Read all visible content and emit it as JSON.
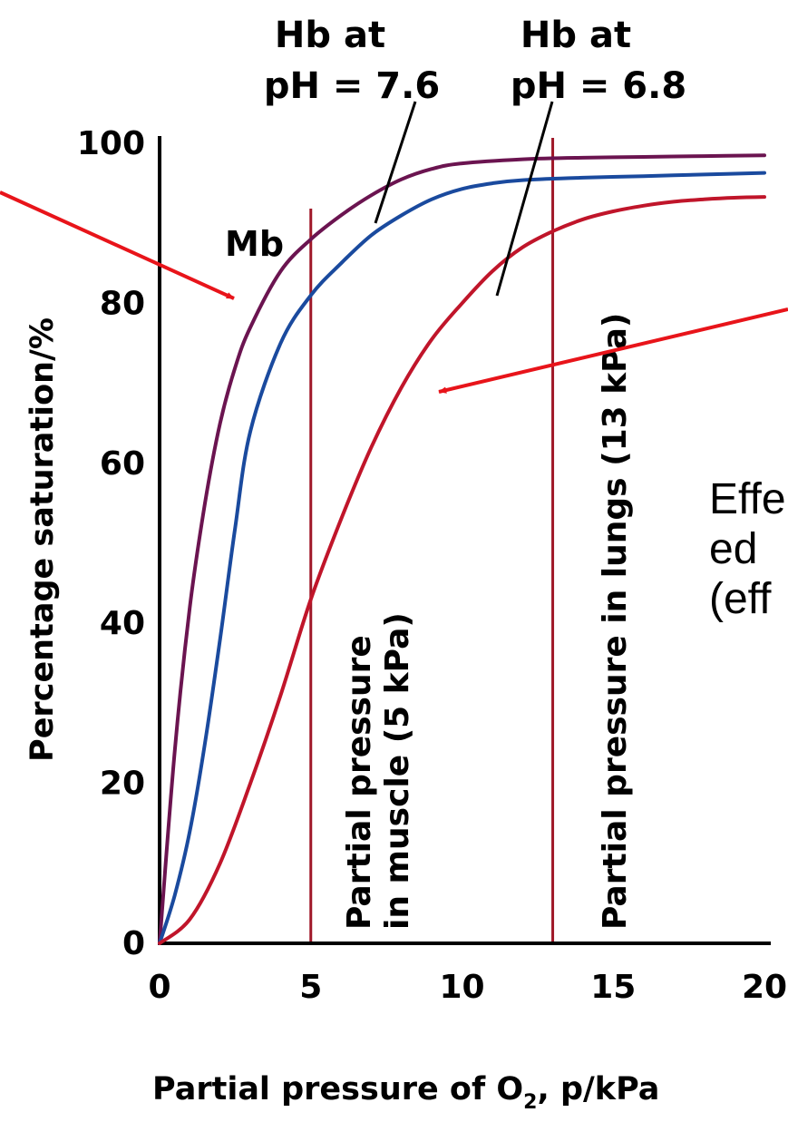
{
  "chart_data": {
    "type": "line",
    "title": "",
    "xlabel": "Partial pressure of O",
    "xlabel_sub": "2",
    "xlabel_tail": ", p/kPa",
    "ylabel": "Percentage saturation/%",
    "xlim": [
      0,
      20
    ],
    "ylim": [
      0,
      100
    ],
    "x_ticks": [
      0,
      5,
      10,
      15,
      20
    ],
    "y_ticks": [
      0,
      20,
      40,
      60,
      80,
      100
    ],
    "grid": false,
    "legend": "none",
    "series": [
      {
        "name": "Mb",
        "color": "#6b1450",
        "x": [
          0,
          0.5,
          1,
          1.5,
          2,
          2.5,
          3,
          4,
          5,
          6,
          7,
          8,
          9,
          10,
          12,
          14,
          16,
          18,
          20
        ],
        "y": [
          0,
          24,
          42,
          55,
          65,
          72,
          77,
          84,
          88,
          91,
          93.5,
          95.5,
          96.8,
          97.5,
          98,
          98.2,
          98.3,
          98.4,
          98.5
        ]
      },
      {
        "name": "Hb at pH = 7.6",
        "color": "#1a4a9e",
        "x": [
          0,
          0.5,
          1,
          1.5,
          2,
          2.5,
          3,
          4,
          5,
          6,
          7,
          8,
          9,
          10,
          11,
          12,
          14,
          16,
          18,
          20
        ],
        "y": [
          0,
          6,
          14,
          25,
          38,
          52,
          64,
          75,
          81,
          85,
          88.5,
          91,
          93,
          94.3,
          95,
          95.4,
          95.7,
          95.9,
          96.1,
          96.3
        ]
      },
      {
        "name": "Hb at pH = 6.8",
        "color": "#c0152a",
        "x": [
          0,
          1,
          2,
          3,
          4,
          5,
          6,
          7,
          8,
          9,
          10,
          11,
          12,
          13,
          14,
          15,
          16,
          17,
          18,
          19,
          20
        ],
        "y": [
          0,
          3,
          10,
          20,
          31,
          43,
          53,
          62,
          69.5,
          75.5,
          80,
          84,
          87,
          89,
          90.5,
          91.5,
          92.2,
          92.7,
          93,
          93.2,
          93.3
        ]
      }
    ],
    "reference_lines": [
      {
        "x": 5,
        "label_1": "Partial pressure",
        "label_2": "in muscle (5 kPa)"
      },
      {
        "x": 13,
        "label_1": "Partial pressure in lungs (13 kPa)"
      }
    ],
    "annotations": {
      "mb_label": "Mb",
      "hb76_line1": "Hb at",
      "hb76_line2": "pH = 7.6",
      "hb68_line1": "Hb at",
      "hb68_line2": "pH = 6.8",
      "side_text_1": "Effe",
      "side_text_2": "ed",
      "side_text_3": "(eff"
    },
    "colors": {
      "axis": "#000000",
      "reference_line": "#a01828",
      "arrow": "#e8141a"
    }
  }
}
